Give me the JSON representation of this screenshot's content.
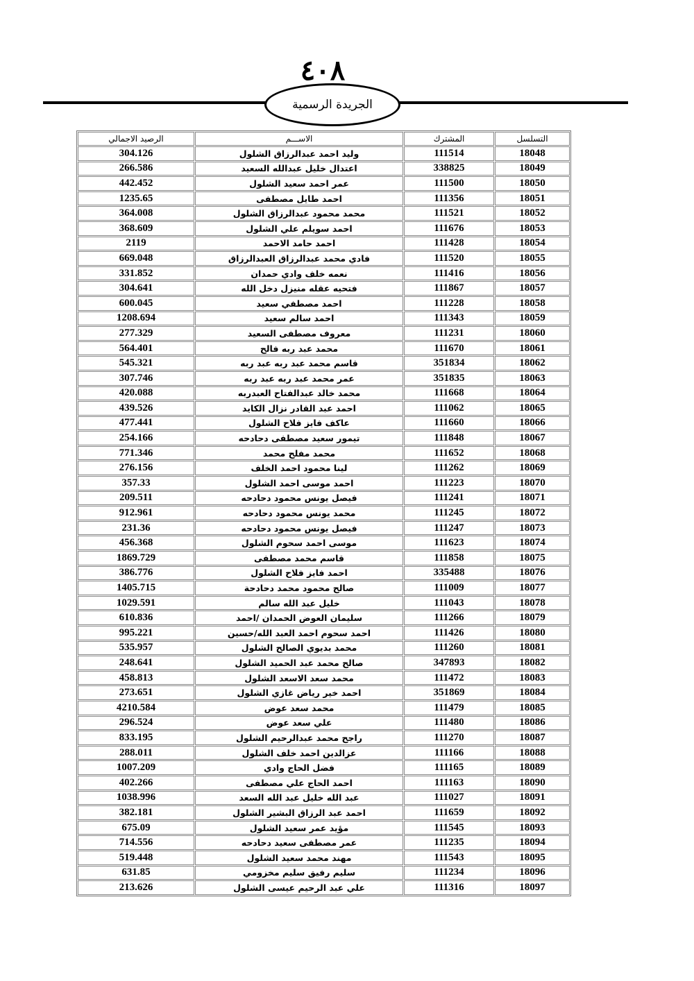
{
  "header": {
    "page_number": "٤٠٨",
    "publication": "الجريدة الرسمية"
  },
  "table": {
    "columns": {
      "serial": "التسلسل",
      "subscriber": "المشترك",
      "name": "الاســـم",
      "balance": "الرصيد الاجمالي"
    },
    "rows": [
      {
        "serial": "18048",
        "subscriber": "111514",
        "name": "وليد احمد عبدالرزاق الشلول",
        "balance": "304.126"
      },
      {
        "serial": "18049",
        "subscriber": "338825",
        "name": "اعتدال خليل عبدالله السعيد",
        "balance": "266.586"
      },
      {
        "serial": "18050",
        "subscriber": "111500",
        "name": "عمر احمد سعيد الشلول",
        "balance": "442.452"
      },
      {
        "serial": "18051",
        "subscriber": "111356",
        "name": "احمد طايل مصطفى",
        "balance": "1235.65"
      },
      {
        "serial": "18052",
        "subscriber": "111521",
        "name": "محمد محمود عبدالرزاق الشلول",
        "balance": "364.008"
      },
      {
        "serial": "18053",
        "subscriber": "111676",
        "name": "احمد سويلم علي الشلول",
        "balance": "368.609"
      },
      {
        "serial": "18054",
        "subscriber": "111428",
        "name": "احمد حامد الاحمد",
        "balance": "2119"
      },
      {
        "serial": "18055",
        "subscriber": "111520",
        "name": "فادي محمد عبدالرزاق العبدالرزاق",
        "balance": "669.048"
      },
      {
        "serial": "18056",
        "subscriber": "111416",
        "name": "نعمه خلف وادي حمدان",
        "balance": "331.852"
      },
      {
        "serial": "18057",
        "subscriber": "111867",
        "name": "فتحيه عقله منيزل دخل الله",
        "balance": "304.641"
      },
      {
        "serial": "18058",
        "subscriber": "111228",
        "name": "احمد مصطفي سعيد",
        "balance": "600.045"
      },
      {
        "serial": "18059",
        "subscriber": "111343",
        "name": "احمد سالم سعيد",
        "balance": "1208.694"
      },
      {
        "serial": "18060",
        "subscriber": "111231",
        "name": "معروف مصطفى السعيد",
        "balance": "277.329"
      },
      {
        "serial": "18061",
        "subscriber": "111670",
        "name": "محمد عبد ربه فالح",
        "balance": "564.401"
      },
      {
        "serial": "18062",
        "subscriber": "351834",
        "name": "قاسم محمد عبد ربه عبد ربه",
        "balance": "545.321"
      },
      {
        "serial": "18063",
        "subscriber": "351835",
        "name": "عمر محمد عبد ربه عبد ربه",
        "balance": "307.746"
      },
      {
        "serial": "18064",
        "subscriber": "111668",
        "name": "محمد خالد عبدالفتاح العبدربه",
        "balance": "420.088"
      },
      {
        "serial": "18065",
        "subscriber": "111062",
        "name": "احمد عبد القادر نزال الكايد",
        "balance": "439.526"
      },
      {
        "serial": "18066",
        "subscriber": "111660",
        "name": "عاكف فايز فلاح الشلول",
        "balance": "477.441"
      },
      {
        "serial": "18067",
        "subscriber": "111848",
        "name": "تيمور سعيد مصطفى دحادحه",
        "balance": "254.166"
      },
      {
        "serial": "18068",
        "subscriber": "111652",
        "name": "محمد مفلح محمد",
        "balance": "771.346"
      },
      {
        "serial": "18069",
        "subscriber": "111262",
        "name": "لينا محمود احمد الخلف",
        "balance": "276.156"
      },
      {
        "serial": "18070",
        "subscriber": "111223",
        "name": "احمد موسى احمد الشلول",
        "balance": "357.33"
      },
      {
        "serial": "18071",
        "subscriber": "111241",
        "name": "فيصل يونس محمود دحادحه",
        "balance": "209.511"
      },
      {
        "serial": "18072",
        "subscriber": "111245",
        "name": "محمد يونس محمود دحادحه",
        "balance": "912.961"
      },
      {
        "serial": "18073",
        "subscriber": "111247",
        "name": "فيصل يونس محمود دحادحه",
        "balance": "231.36"
      },
      {
        "serial": "18074",
        "subscriber": "111623",
        "name": "موسى احمد سحوم الشلول",
        "balance": "456.368"
      },
      {
        "serial": "18075",
        "subscriber": "111858",
        "name": "قاسم محمد مصطفى",
        "balance": "1869.729"
      },
      {
        "serial": "18076",
        "subscriber": "335488",
        "name": "احمد فايز فلاح الشلول",
        "balance": "386.776"
      },
      {
        "serial": "18077",
        "subscriber": "111009",
        "name": "صالح محمود محمد دحادحة",
        "balance": "1405.715"
      },
      {
        "serial": "18078",
        "subscriber": "111043",
        "name": "خليل عبد الله سالم",
        "balance": "1029.591"
      },
      {
        "serial": "18079",
        "subscriber": "111266",
        "name": "سليمان العوض الحمدان /احمد",
        "balance": "610.836"
      },
      {
        "serial": "18080",
        "subscriber": "111426",
        "name": "احمد سحوم احمد العبد الله/حسين",
        "balance": "995.221"
      },
      {
        "serial": "18081",
        "subscriber": "111260",
        "name": "محمد بديوي الصالح الشلول",
        "balance": "535.957"
      },
      {
        "serial": "18082",
        "subscriber": "347893",
        "name": "صالح محمد عبد الحميد الشلول",
        "balance": "248.641"
      },
      {
        "serial": "18083",
        "subscriber": "111472",
        "name": "محمد سعد الاسعد الشلول",
        "balance": "458.813"
      },
      {
        "serial": "18084",
        "subscriber": "351869",
        "name": "احمد خير رياض غازي الشلول",
        "balance": "273.651"
      },
      {
        "serial": "18085",
        "subscriber": "111479",
        "name": "محمد سعد عوض",
        "balance": "4210.584"
      },
      {
        "serial": "18086",
        "subscriber": "111480",
        "name": "علي سعد عوض",
        "balance": "296.524"
      },
      {
        "serial": "18087",
        "subscriber": "111270",
        "name": "راجح محمد عبدالرحيم الشلول",
        "balance": "833.195"
      },
      {
        "serial": "18088",
        "subscriber": "111166",
        "name": "عزالدين احمد خلف الشلول",
        "balance": "288.011"
      },
      {
        "serial": "18089",
        "subscriber": "111165",
        "name": "فضل الحاج وادي",
        "balance": "1007.209"
      },
      {
        "serial": "18090",
        "subscriber": "111163",
        "name": "احمد الحاج علي مصطفى",
        "balance": "402.266"
      },
      {
        "serial": "18091",
        "subscriber": "111027",
        "name": "عبد الله خليل عبد الله السعد",
        "balance": "1038.996"
      },
      {
        "serial": "18092",
        "subscriber": "111659",
        "name": "احمد عبد الرزاق البشير الشلول",
        "balance": "382.181"
      },
      {
        "serial": "18093",
        "subscriber": "111545",
        "name": "مؤيد عمر سعيد الشلول",
        "balance": "675.09"
      },
      {
        "serial": "18094",
        "subscriber": "111235",
        "name": "عمر مصطفى سعيد دحادحه",
        "balance": "714.556"
      },
      {
        "serial": "18095",
        "subscriber": "111543",
        "name": "مهند محمد سعيد الشلول",
        "balance": "519.448"
      },
      {
        "serial": "18096",
        "subscriber": "111234",
        "name": "سليم رفيق سليم مخزومي",
        "balance": "631.85"
      },
      {
        "serial": "18097",
        "subscriber": "111316",
        "name": "علي عبد الرحيم عيسى الشلول",
        "balance": "213.626"
      }
    ]
  }
}
